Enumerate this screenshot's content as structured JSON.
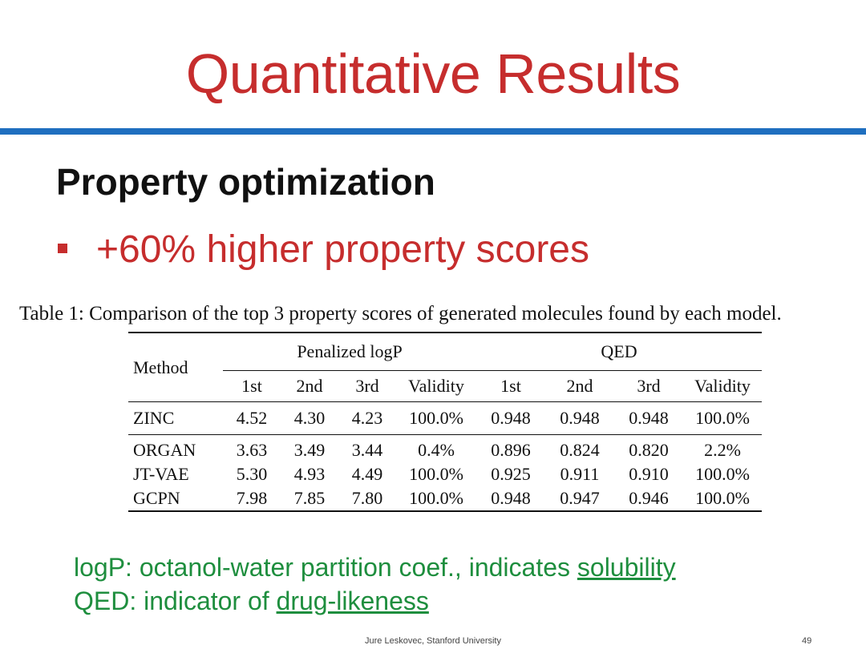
{
  "slide": {
    "title": "Quantitative Results",
    "subtitle": "Property optimization",
    "bullet": "+60% higher property scores",
    "title_color": "#c62d2d",
    "rule_color": "#1f6fbf",
    "note_color": "#1e8e3e"
  },
  "table": {
    "caption": "Table 1: Comparison of the top 3 property scores of generated molecules found by each model.",
    "method_header": "Method",
    "group_headers": [
      "Penalized logP",
      "QED"
    ],
    "sub_headers": [
      "1st",
      "2nd",
      "3rd",
      "Validity",
      "1st",
      "2nd",
      "3rd",
      "Validity"
    ],
    "rows": [
      {
        "method": "ZINC",
        "values": [
          "4.52",
          "4.30",
          "4.23",
          "100.0%",
          "0.948",
          "0.948",
          "0.948",
          "100.0%"
        ]
      },
      {
        "method": "ORGAN",
        "values": [
          "3.63",
          "3.49",
          "3.44",
          "0.4%",
          "0.896",
          "0.824",
          "0.820",
          "2.2%"
        ]
      },
      {
        "method": "JT-VAE",
        "values": [
          "5.30",
          "4.93",
          "4.49",
          "100.0%",
          "0.925",
          "0.911",
          "0.910",
          "100.0%"
        ]
      },
      {
        "method": "GCPN",
        "values": [
          "7.98",
          "7.85",
          "7.80",
          "100.0%",
          "0.948",
          "0.947",
          "0.946",
          "100.0%"
        ]
      }
    ]
  },
  "notes": {
    "logp_prefix": "logP: octanol-water partition coef., indicates ",
    "logp_link": "solubility",
    "qed_prefix": "QED: indicator of ",
    "qed_link": "drug-likeness"
  },
  "footer": {
    "author": "Jure Leskovec, Stanford University",
    "page": "49"
  }
}
